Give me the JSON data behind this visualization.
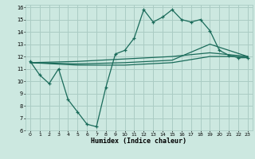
{
  "xlabel": "Humidex (Indice chaleur)",
  "bg_color": "#cce8e0",
  "grid_color": "#aaccc4",
  "line_color": "#1a6b5a",
  "xlim": [
    -0.5,
    23.5
  ],
  "ylim": [
    6,
    16.2
  ],
  "yticks": [
    6,
    7,
    8,
    9,
    10,
    11,
    12,
    13,
    14,
    15,
    16
  ],
  "xticks": [
    0,
    1,
    2,
    3,
    4,
    5,
    6,
    7,
    8,
    9,
    10,
    11,
    12,
    13,
    14,
    15,
    16,
    17,
    18,
    19,
    20,
    21,
    22,
    23
  ],
  "line1_x": [
    0,
    1,
    2,
    3,
    4,
    5,
    6,
    7,
    8,
    9,
    10,
    11,
    12,
    13,
    14,
    15,
    16,
    17,
    18,
    19,
    20,
    21,
    22,
    23
  ],
  "line1_y": [
    11.6,
    10.5,
    9.8,
    11.0,
    8.5,
    7.5,
    6.5,
    6.3,
    9.5,
    12.2,
    12.5,
    13.5,
    15.8,
    14.8,
    15.2,
    15.8,
    15.0,
    14.8,
    15.0,
    14.1,
    12.5,
    12.1,
    11.9,
    11.9
  ],
  "line2_x": [
    0,
    5,
    10,
    15,
    19,
    23
  ],
  "line2_y": [
    11.5,
    11.6,
    11.8,
    12.0,
    12.3,
    12.0
  ],
  "line3_x": [
    0,
    5,
    10,
    15,
    19,
    23
  ],
  "line3_y": [
    11.5,
    11.4,
    11.5,
    11.7,
    13.0,
    12.0
  ],
  "line4_x": [
    0,
    5,
    10,
    15,
    19,
    23
  ],
  "line4_y": [
    11.5,
    11.3,
    11.3,
    11.5,
    12.0,
    12.0
  ]
}
